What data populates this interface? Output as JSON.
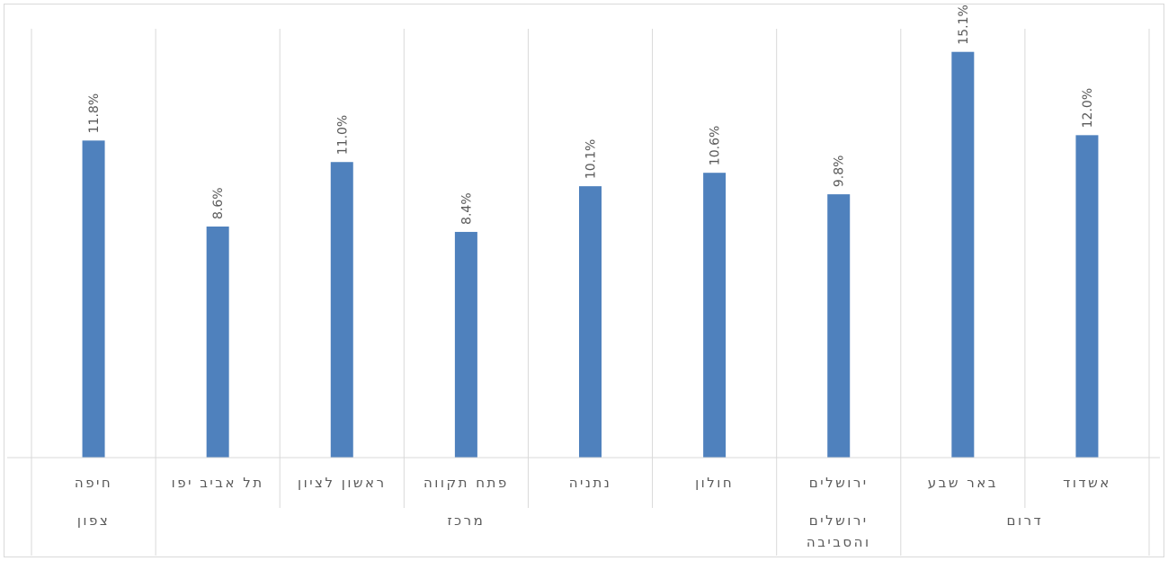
{
  "chart_data": {
    "type": "bar",
    "categories": [
      {
        "name": "חיפה",
        "group": "צפון"
      },
      {
        "name": "תל אביב יפו",
        "group": "מרכז"
      },
      {
        "name": "ראשון לציון",
        "group": "מרכז"
      },
      {
        "name": "פתח תקווה",
        "group": "מרכז"
      },
      {
        "name": "נתניה",
        "group": "מרכז"
      },
      {
        "name": "חולון",
        "group": "מרכז"
      },
      {
        "name": "ירושלים",
        "group": "ירושלים והסביבה"
      },
      {
        "name": "באר שבע",
        "group": "דרום"
      },
      {
        "name": "אשדוד",
        "group": "דרום"
      }
    ],
    "values": [
      11.8,
      8.6,
      11.0,
      8.4,
      10.1,
      10.6,
      9.8,
      15.1,
      12.0
    ],
    "value_labels": [
      "11.8%",
      "8.6%",
      "11.0%",
      "8.4%",
      "10.1%",
      "10.6%",
      "9.8%",
      "15.1%",
      "12.0%"
    ],
    "groups": [
      {
        "label_lines": [
          "צפון"
        ],
        "span": [
          0,
          0
        ]
      },
      {
        "label_lines": [
          "מרכז"
        ],
        "span": [
          1,
          5
        ]
      },
      {
        "label_lines": [
          "ירושלים",
          "והסביבה"
        ],
        "span": [
          6,
          6
        ]
      },
      {
        "label_lines": [
          "דרום"
        ],
        "span": [
          7,
          8
        ]
      }
    ],
    "title": "",
    "xlabel": "",
    "ylabel": "",
    "ylim": [
      0,
      16
    ],
    "colors": {
      "bar": "#4f81bd",
      "grid": "#d9d9d9",
      "text": "#595959"
    },
    "grid": "vertical category separators",
    "legend": "none"
  }
}
